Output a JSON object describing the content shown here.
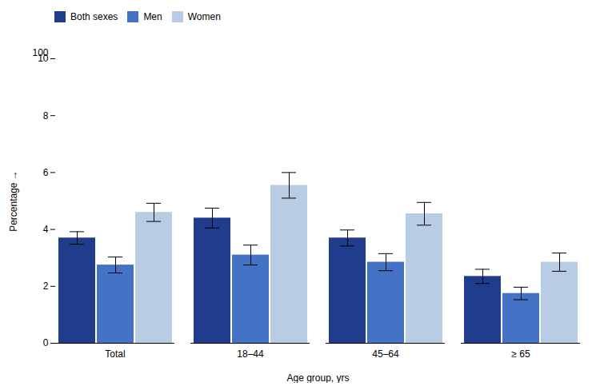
{
  "chart_data": {
    "type": "bar",
    "categories": [
      "Total",
      "18–44",
      "45–64",
      "≥ 65"
    ],
    "series": [
      {
        "name": "Both sexes",
        "color": "#1f3d8c",
        "values": [
          3.7,
          4.4,
          3.7,
          2.35
        ],
        "errors": [
          0.22,
          0.35,
          0.28,
          0.25
        ]
      },
      {
        "name": "Men",
        "color": "#4472c4",
        "values": [
          2.75,
          3.1,
          2.85,
          1.75
        ],
        "errors": [
          0.28,
          0.35,
          0.3,
          0.22
        ]
      },
      {
        "name": "Women",
        "color": "#b8cce4",
        "values": [
          4.6,
          5.55,
          4.55,
          2.85
        ],
        "errors": [
          0.32,
          0.45,
          0.4,
          0.32
        ]
      }
    ],
    "xlabel": "Age group, yrs",
    "ylabel": "Percentage",
    "ylim": [
      0,
      10
    ],
    "yticks": [
      0,
      2,
      4,
      6,
      8,
      10
    ],
    "annotations": [
      "100"
    ],
    "grid": false,
    "legend": "top"
  }
}
